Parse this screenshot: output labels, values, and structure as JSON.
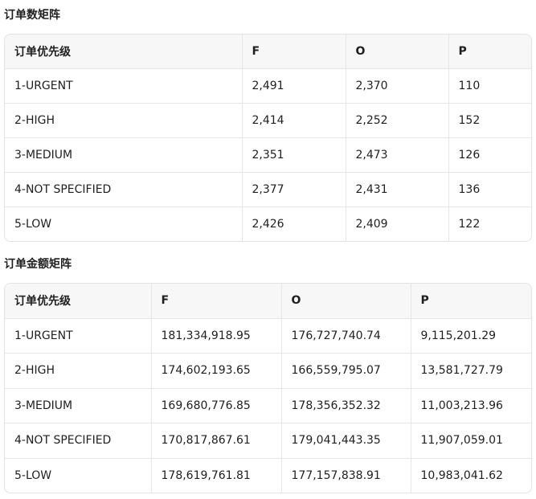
{
  "sections": [
    {
      "title": "订单数矩阵",
      "table": {
        "header": [
          "订单优先级",
          "F",
          "O",
          "P"
        ],
        "rows": [
          [
            "1-URGENT",
            "2,491",
            "2,370",
            "110"
          ],
          [
            "2-HIGH",
            "2,414",
            "2,252",
            "152"
          ],
          [
            "3-MEDIUM",
            "2,351",
            "2,473",
            "126"
          ],
          [
            "4-NOT SPECIFIED",
            "2,377",
            "2,431",
            "136"
          ],
          [
            "5-LOW",
            "2,426",
            "2,409",
            "122"
          ]
        ]
      }
    },
    {
      "title": "订单金额矩阵",
      "table": {
        "header": [
          "订单优先级",
          "F",
          "O",
          "P"
        ],
        "rows": [
          [
            "1-URGENT",
            "181,334,918.95",
            "176,727,740.74",
            "9,115,201.29"
          ],
          [
            "2-HIGH",
            "174,602,193.65",
            "166,559,795.07",
            "13,581,727.79"
          ],
          [
            "3-MEDIUM",
            "169,680,776.85",
            "178,356,352.32",
            "11,003,213.96"
          ],
          [
            "4-NOT SPECIFIED",
            "170,817,867.61",
            "179,041,443.35",
            "11,907,059.01"
          ],
          [
            "5-LOW",
            "178,619,761.81",
            "177,157,838.91",
            "10,983,041.62"
          ]
        ]
      }
    }
  ]
}
